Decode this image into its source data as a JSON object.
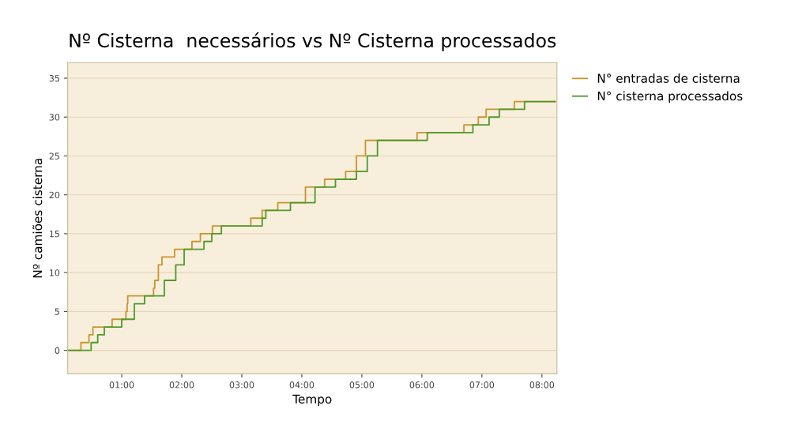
{
  "chart_data": {
    "type": "step",
    "title": "Nº Cisterna  necessários vs Nº Cisterna processados",
    "xlabel": "Tempo",
    "ylabel": "Nº camiões cisterna",
    "series": [
      {
        "name": "N° entradas de cisterna",
        "color": "#c8962e",
        "x": [
          0.1,
          0.32,
          0.455,
          0.52,
          0.84,
          1.07,
          1.09,
          1.1,
          1.53,
          1.55,
          1.61,
          1.67,
          1.88,
          2.17,
          2.31,
          2.51,
          3.15,
          3.34,
          3.6,
          4.06,
          4.38,
          4.73,
          4.91,
          5.06,
          5.92,
          6.7,
          6.94,
          7.07,
          7.54,
          8.22
        ],
        "values": [
          0,
          1,
          2,
          3,
          4,
          5,
          6,
          7,
          8,
          9,
          11,
          12,
          13,
          14,
          15,
          16,
          17,
          18,
          19,
          21,
          22,
          23,
          25,
          27,
          28,
          29,
          30,
          31,
          32,
          32
        ]
      },
      {
        "name": "N° cisterna processados",
        "color": "#4e9a2a",
        "x": [
          0.1,
          0.49,
          0.6,
          0.71,
          1.0,
          1.21,
          1.38,
          1.71,
          1.9,
          2.04,
          2.37,
          2.5,
          2.66,
          3.34,
          3.4,
          3.81,
          4.22,
          4.56,
          4.91,
          5.09,
          5.26,
          6.09,
          6.85,
          7.12,
          7.29,
          7.71,
          8.22
        ],
        "values": [
          0,
          1,
          2,
          3,
          4,
          6,
          7,
          9,
          11,
          13,
          14,
          15,
          16,
          17,
          18,
          19,
          21,
          22,
          23,
          25,
          27,
          28,
          29,
          30,
          31,
          32,
          32
        ]
      }
    ],
    "xlim": [
      0.1,
      8.25
    ],
    "xticks": [
      {
        "value": 1,
        "label": "01:00"
      },
      {
        "value": 2,
        "label": "02:00"
      },
      {
        "value": 3,
        "label": "03:00"
      },
      {
        "value": 4,
        "label": "04:00"
      },
      {
        "value": 5,
        "label": "05:00"
      },
      {
        "value": 6,
        "label": "06:00"
      },
      {
        "value": 7,
        "label": "07:00"
      },
      {
        "value": 8,
        "label": "08:00"
      }
    ],
    "ylim": [
      -3,
      37
    ],
    "yticks": [
      0,
      5,
      10,
      15,
      20,
      25,
      30,
      35
    ],
    "grid": "y",
    "legend": "top right",
    "line_style": "solid",
    "marker": "none"
  }
}
